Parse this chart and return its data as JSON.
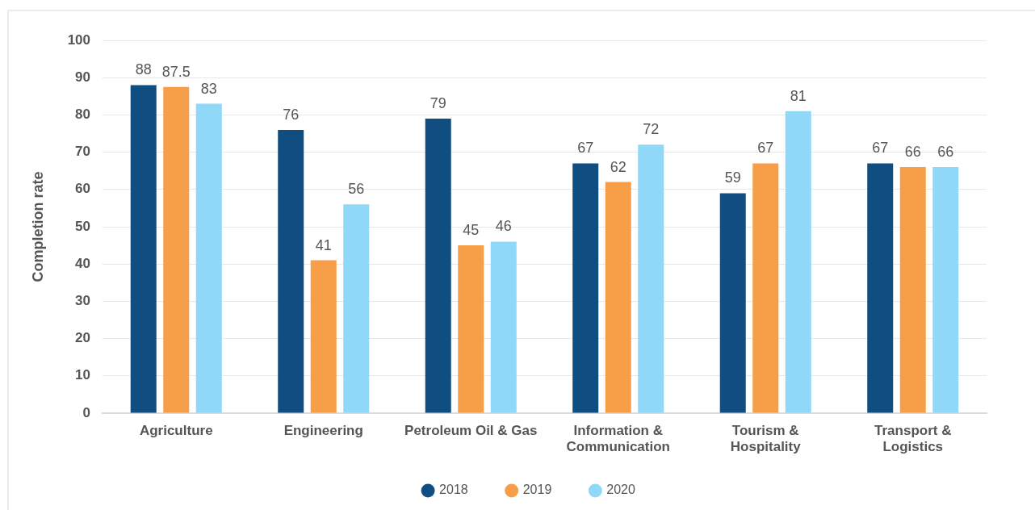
{
  "chart_data": {
    "type": "bar",
    "ylabel": "Completion rate",
    "categories": [
      "Agriculture",
      "Engineering",
      "Petroleum Oil & Gas",
      "Information &\nCommunication",
      "Tourism &\nHospitality",
      "Transport &\nLogistics"
    ],
    "series": [
      {
        "name": "2018",
        "color": "#104d80",
        "values": [
          88,
          76,
          79,
          67,
          59,
          67
        ]
      },
      {
        "name": "2019",
        "color": "#f79e48",
        "values": [
          87.5,
          41,
          45,
          62,
          67,
          66
        ]
      },
      {
        "name": "2020",
        "color": "#8fd8f7",
        "values": [
          83,
          56,
          46,
          72,
          81,
          66
        ]
      }
    ],
    "ylim": [
      0,
      100
    ],
    "yticks": [
      0,
      10,
      20,
      30,
      40,
      50,
      60,
      70,
      80,
      90,
      100
    ],
    "grid": "y",
    "legend": "bottom",
    "data_labels": true
  }
}
